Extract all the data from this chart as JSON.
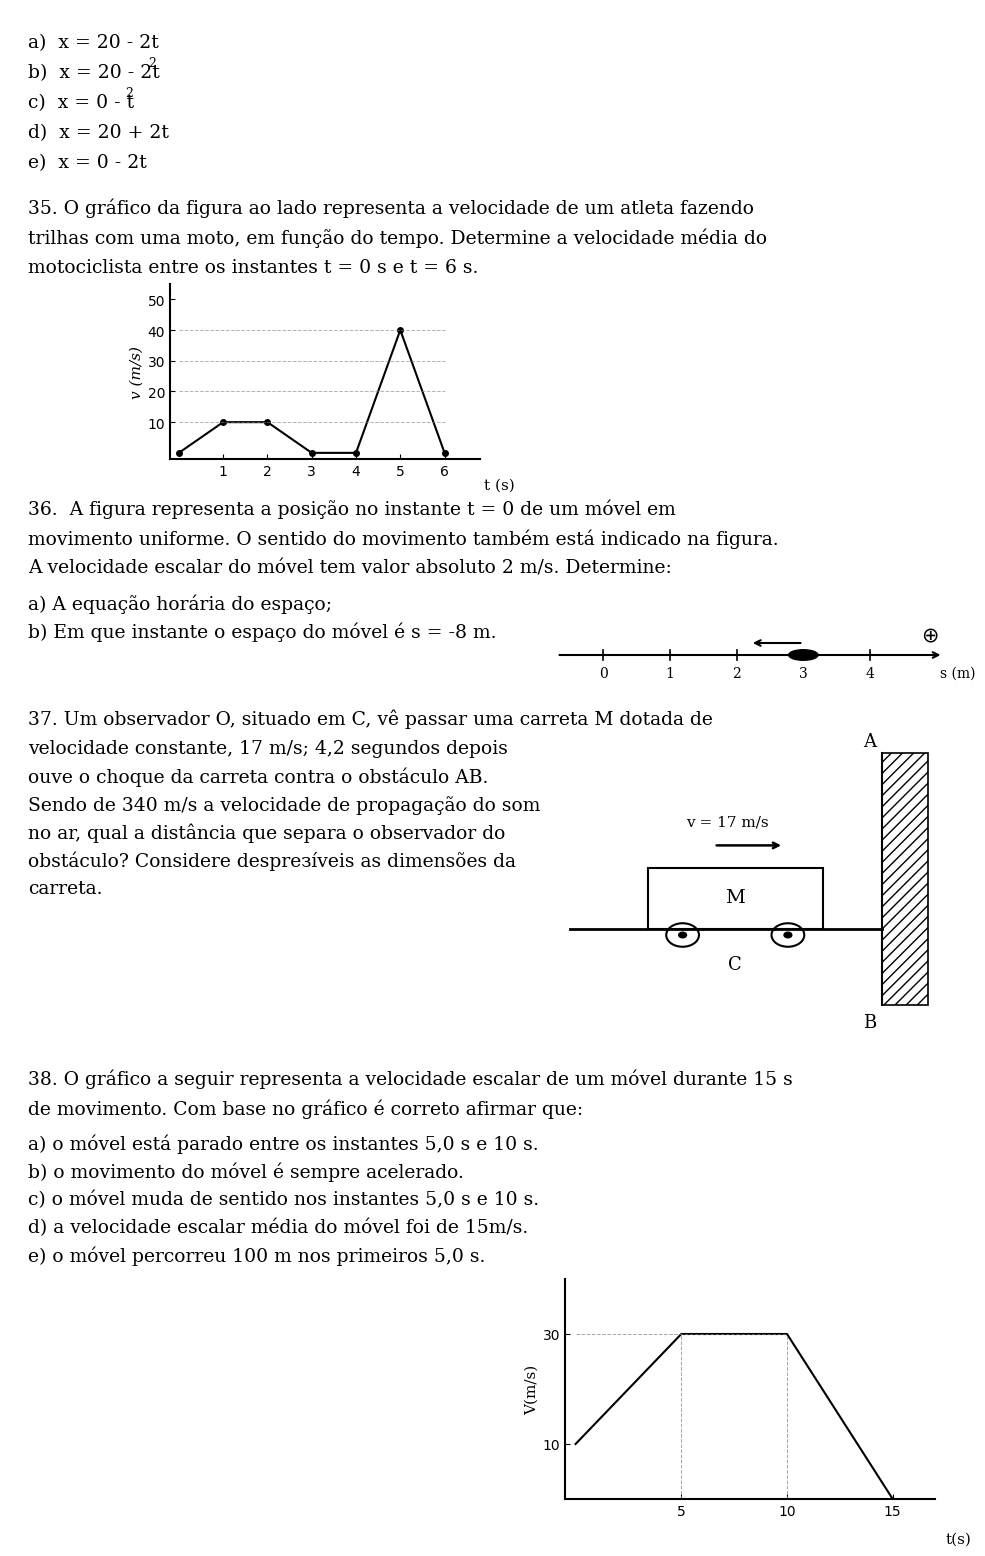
{
  "bg_color": "#ffffff",
  "text_color": "#000000",
  "q35_text": [
    "35. O gráfico da figura ao lado representa a velocidade de um atleta fazendo",
    "trilhas com uma moto, em função do tempo. Determine a velocidade média do",
    "motociclista entre os instantes t = 0 s e t = 6 s."
  ],
  "chart35_t": [
    0,
    1,
    2,
    3,
    4,
    5,
    6
  ],
  "chart35_v": [
    0,
    10,
    10,
    0,
    0,
    40,
    0
  ],
  "chart35_yticks": [
    10,
    20,
    30,
    40,
    50
  ],
  "chart35_xticks": [
    1,
    2,
    3,
    4,
    5,
    6
  ],
  "q36_text": [
    "36.  A figura representa a posição no instante t = 0 de um móvel em",
    "movimento uniforme. O sentido do movimento também está indicado na figura.",
    "A velocidade escalar do móvel tem valor absoluto 2 m/s. Determine:"
  ],
  "q36_sub": [
    "a) A equação horária do espaço;",
    "b) Em que instante o espaço do móvel é s = -8 m."
  ],
  "q37_text_col1": [
    "37. Um observador O, situado em C, vê passar uma carreta M dotada de",
    "velocidade constante, 17 m/s; 4,2 segundos depois",
    "ouve o choque da carreta contra o obstáculo AB.",
    "Sendo de 340 m/s a velocidade de propagação do som",
    "no ar, qual a distância que separa o observador do",
    "obstáculo? Considere desprезíveis as dimensões da",
    "carreta."
  ],
  "q38_text": [
    "38. O gráfico a seguir representa a velocidade escalar de um móvel durante 15 s",
    "de movimento. Com base no gráfico é correto afirmar que:"
  ],
  "q38_options": [
    "a) o móvel está parado entre os instantes 5,0 s e 10 s.",
    "b) o movimento do móvel é sempre acelerado.",
    "c) o móvel muda de sentido nos instantes 5,0 s e 10 s.",
    "d) a velocidade escalar média do móvel foi de 15m/s.",
    "e) o móvel percorreu 100 m nos primeiros 5,0 s."
  ],
  "chart38_t": [
    0,
    5,
    10,
    15
  ],
  "chart38_v": [
    10,
    30,
    30,
    0
  ],
  "chart38_yticks": [
    10,
    30
  ],
  "chart38_xticks": [
    5,
    10,
    15
  ]
}
